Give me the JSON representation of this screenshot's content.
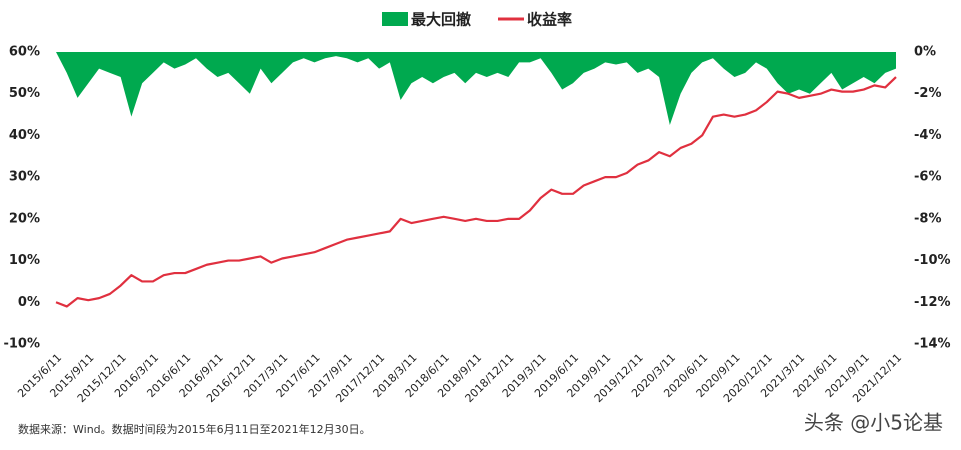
{
  "chart_data": {
    "type": "line",
    "legend": "top",
    "categories": [
      "2015/6/11",
      null,
      null,
      "2015/9/11",
      null,
      null,
      "2015/12/11",
      null,
      null,
      "2016/3/11",
      null,
      null,
      "2016/6/11",
      null,
      null,
      "2016/9/11",
      null,
      null,
      "2016/12/11",
      null,
      null,
      "2017/3/11",
      null,
      null,
      "2017/6/11",
      null,
      null,
      "2017/9/11",
      null,
      null,
      "2017/12/11",
      null,
      null,
      "2018/3/11",
      null,
      null,
      "2018/6/11",
      null,
      null,
      "2018/9/11",
      null,
      null,
      "2018/12/11",
      null,
      null,
      "2019/3/11",
      null,
      null,
      "2019/6/11",
      null,
      null,
      "2019/9/11",
      null,
      null,
      "2019/12/11",
      null,
      null,
      "2020/3/11",
      null,
      null,
      "2020/6/11",
      null,
      null,
      "2020/9/11",
      null,
      null,
      "2020/12/11",
      null,
      null,
      "2021/3/11",
      null,
      null,
      "2021/6/11",
      null,
      null,
      "2021/9/11",
      null,
      null,
      "2021/12/11"
    ],
    "series": [
      {
        "name": "最大回撤",
        "type": "area",
        "axis": "y2",
        "color": "#00a94f",
        "values": [
          0,
          -1,
          -2.2,
          -1.5,
          -0.8,
          -1,
          -1.2,
          -3.1,
          -1.5,
          -1,
          -0.5,
          -0.8,
          -0.6,
          -0.3,
          -0.8,
          -1.2,
          -1,
          -1.5,
          -2,
          -0.8,
          -1.5,
          -1,
          -0.5,
          -0.3,
          -0.5,
          -0.3,
          -0.2,
          -0.3,
          -0.5,
          -0.3,
          -0.8,
          -0.5,
          -2.3,
          -1.5,
          -1.2,
          -1.5,
          -1.2,
          -1,
          -1.5,
          -1,
          -1.2,
          -1,
          -1.2,
          -0.5,
          -0.5,
          -0.3,
          -1,
          -1.8,
          -1.5,
          -1,
          -0.8,
          -0.5,
          -0.6,
          -0.5,
          -1,
          -0.8,
          -1.2,
          -3.5,
          -2,
          -1,
          -0.5,
          -0.3,
          -0.8,
          -1.2,
          -1,
          -0.5,
          -0.8,
          -1.5,
          -2,
          -1.8,
          -2,
          -1.5,
          -1,
          -1.8,
          -1.5,
          -1.2,
          -1.5,
          -1,
          -0.8
        ]
      },
      {
        "name": "收益率",
        "type": "line",
        "color": "#e0303f",
        "values": [
          0,
          -1,
          1,
          0.5,
          1,
          2,
          4,
          6.5,
          5,
          5,
          6.5,
          7,
          7,
          8,
          9,
          9.5,
          10,
          10,
          10.5,
          11,
          9.5,
          10.5,
          11,
          11.5,
          12,
          13,
          14,
          15,
          15.5,
          16,
          16.5,
          17,
          20,
          19,
          19.5,
          20,
          20.5,
          20,
          19.5,
          20,
          19.5,
          19.5,
          20,
          20,
          22,
          25,
          27,
          26,
          26,
          28,
          29,
          30,
          30,
          31,
          33,
          34,
          36,
          35,
          37,
          38,
          40,
          44.5,
          45,
          44.5,
          45,
          46,
          48,
          50.5,
          50,
          49,
          49.5,
          50,
          51,
          50.5,
          50.5,
          51,
          52,
          51.5,
          54
        ]
      }
    ],
    "ylim": [
      -10,
      60
    ],
    "yticks": [
      {
        "value": -10,
        "label": "-10%"
      },
      {
        "value": 0,
        "label": "0%"
      },
      {
        "value": 10,
        "label": "10%"
      },
      {
        "value": 20,
        "label": "20%"
      },
      {
        "value": 30,
        "label": "30%"
      },
      {
        "value": 40,
        "label": "40%"
      },
      {
        "value": 50,
        "label": "50%"
      },
      {
        "value": 60,
        "label": "60%"
      }
    ],
    "y2lim": [
      -14,
      0
    ],
    "y2ticks": [
      {
        "value": -14,
        "label": "-14%"
      },
      {
        "value": -12,
        "label": "-12%"
      },
      {
        "value": -10,
        "label": "-10%"
      },
      {
        "value": -8,
        "label": "-8%"
      },
      {
        "value": -6,
        "label": "-6%"
      },
      {
        "value": -4,
        "label": "-4%"
      },
      {
        "value": -2,
        "label": "-2%"
      },
      {
        "value": 0,
        "label": "0%"
      }
    ],
    "source": "数据来源：Wind。数据时间段为2015年6月11日至2021年12月30日。",
    "watermark": "头条 @小5论基"
  }
}
